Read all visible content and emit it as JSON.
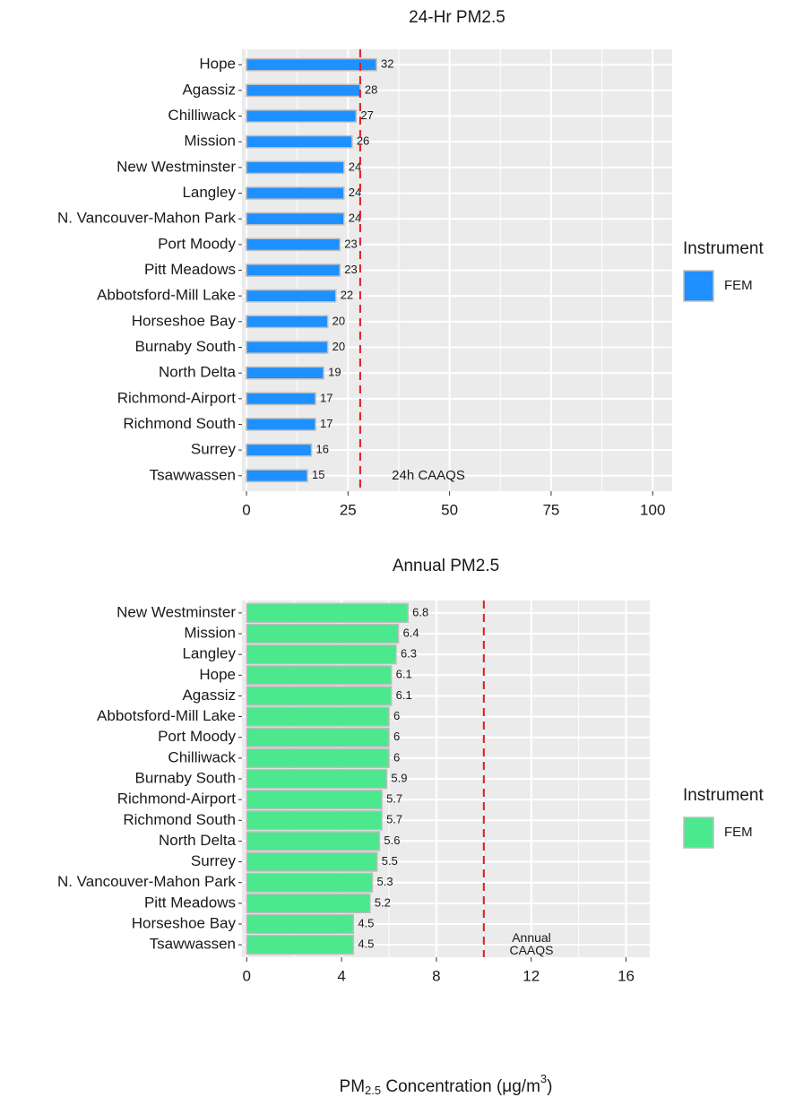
{
  "chart_data": [
    {
      "type": "bar",
      "title": "24-Hr PM2.5",
      "categories": [
        "Hope",
        "Agassiz",
        "Chilliwack",
        "Mission",
        "New Westminster",
        "Langley",
        "N. Vancouver-Mahon Park",
        "Port Moody",
        "Pitt Meadows",
        "Abbotsford-Mill Lake",
        "Horseshoe Bay",
        "Burnaby South",
        "North Delta",
        "Richmond-Airport",
        "Richmond South",
        "Surrey",
        "Tsawwassen"
      ],
      "series": [
        {
          "name": "FEM",
          "color": "#1E90FF",
          "values": [
            32,
            28,
            27,
            26,
            24,
            24,
            24,
            23,
            23,
            22,
            20,
            20,
            19,
            17,
            17,
            16,
            15
          ]
        }
      ],
      "xlim": [
        -1.1,
        104.8
      ],
      "xticks": [
        0,
        25,
        50,
        75,
        100
      ],
      "grid": true,
      "reference": {
        "value": 28,
        "color": "#E41A1C",
        "label": [
          "24h CAAQS"
        ]
      },
      "legend_title": "Instrument",
      "legend": "right"
    },
    {
      "type": "bar",
      "title": "Annual PM2.5",
      "categories": [
        "New Westminster",
        "Mission",
        "Langley",
        "Hope",
        "Agassiz",
        "Abbotsford-Mill Lake",
        "Port Moody",
        "Chilliwack",
        "Burnaby South",
        "Richmond-Airport",
        "Richmond South",
        "North Delta",
        "Surrey",
        "N. Vancouver-Mahon Park",
        "Pitt Meadows",
        "Horseshoe Bay",
        "Tsawwassen"
      ],
      "series": [
        {
          "name": "FEM",
          "color": "#4BE88E",
          "values": [
            6.8,
            6.4,
            6.3,
            6.1,
            6.1,
            6,
            6,
            6,
            5.9,
            5.7,
            5.7,
            5.6,
            5.5,
            5.3,
            5.2,
            4.5,
            4.5
          ]
        }
      ],
      "xlim": [
        -0.2,
        17
      ],
      "xticks": [
        0,
        4,
        8,
        12,
        16
      ],
      "grid": true,
      "reference": {
        "value": 10,
        "color": "#E41A1C",
        "label": [
          "Annual",
          "CAAQS"
        ]
      },
      "legend_title": "Instrument",
      "legend": "right",
      "xlabel": {
        "main": "PM",
        "sub": "2.5",
        "rest": " Concentration (μg/m",
        "sup": "3",
        "close": ")"
      }
    }
  ]
}
